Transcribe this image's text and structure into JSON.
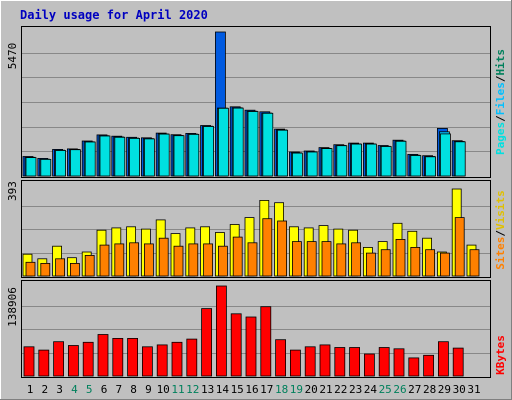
{
  "title": "Daily usage for April 2020",
  "colors": {
    "background": "#c0c0c0",
    "plot_bg": "#c0c0c0",
    "grid": "#888888",
    "hits": "#005ae0",
    "files": "#00c0ff",
    "pages": "#00e0e0",
    "visits": "#ffff00",
    "sites": "#ff8000",
    "kbytes": "#ff0000",
    "title": "#0000c0",
    "weekend_label": "#00805c",
    "weekday_label": "#000000"
  },
  "chart_data": [
    {
      "type": "bar",
      "panel": "hits-files-pages",
      "ylabel_max": "5470",
      "ymax": 5470,
      "legend": [
        "Hits",
        "/",
        "Files",
        "/",
        "Pages"
      ],
      "categories": [
        "1",
        "2",
        "3",
        "4",
        "5",
        "6",
        "7",
        "8",
        "9",
        "10",
        "11",
        "12",
        "13",
        "14",
        "15",
        "16",
        "17",
        "18",
        "19",
        "20",
        "21",
        "22",
        "23",
        "24",
        "25",
        "26",
        "27",
        "28",
        "29",
        "30",
        "31"
      ],
      "series": [
        {
          "name": "Hits",
          "values": [
            740,
            670,
            1010,
            1030,
            1330,
            1560,
            1510,
            1470,
            1450,
            1630,
            1570,
            1620,
            1920,
            5470,
            2630,
            2500,
            2440,
            1780,
            910,
            950,
            1080,
            1190,
            1250,
            1250,
            1160,
            1360,
            820,
            770,
            1810,
            1340,
            0
          ]
        },
        {
          "name": "Files",
          "values": [
            710,
            640,
            980,
            1010,
            1300,
            1530,
            1480,
            1440,
            1420,
            1600,
            1540,
            1590,
            1890,
            2580,
            2590,
            2460,
            2390,
            1750,
            880,
            920,
            1050,
            1160,
            1220,
            1220,
            1130,
            1330,
            790,
            740,
            1680,
            1310,
            0
          ]
        },
        {
          "name": "Pages",
          "values": [
            700,
            630,
            970,
            1000,
            1290,
            1520,
            1470,
            1430,
            1410,
            1590,
            1530,
            1580,
            1880,
            2570,
            2580,
            2450,
            2380,
            1740,
            870,
            910,
            1040,
            1150,
            1210,
            1210,
            1120,
            1320,
            780,
            730,
            1600,
            1300,
            0
          ]
        }
      ]
    },
    {
      "type": "bar",
      "panel": "visits-sites",
      "ylabel_max": "393",
      "ymax": 393,
      "legend": [
        "Visits",
        "/",
        "Sites"
      ],
      "categories": [
        "1",
        "2",
        "3",
        "4",
        "5",
        "6",
        "7",
        "8",
        "9",
        "10",
        "11",
        "12",
        "13",
        "14",
        "15",
        "16",
        "17",
        "18",
        "19",
        "20",
        "21",
        "22",
        "23",
        "24",
        "25",
        "26",
        "27",
        "28",
        "29",
        "30",
        "31"
      ],
      "series": [
        {
          "name": "Visits",
          "values": [
            95,
            75,
            130,
            80,
            105,
            200,
            210,
            215,
            205,
            245,
            185,
            210,
            215,
            190,
            225,
            255,
            330,
            320,
            215,
            210,
            220,
            205,
            200,
            125,
            150,
            230,
            195,
            165,
            105,
            380,
            135
          ]
        },
        {
          "name": "Sites",
          "values": [
            60,
            55,
            75,
            55,
            90,
            135,
            140,
            145,
            140,
            165,
            130,
            140,
            140,
            130,
            170,
            145,
            250,
            240,
            150,
            150,
            150,
            140,
            145,
            100,
            115,
            160,
            125,
            115,
            100,
            255,
            115
          ]
        }
      ]
    },
    {
      "type": "bar",
      "panel": "kbytes",
      "ylabel_max": "138906",
      "ymax": 138906,
      "legend": [
        "KBytes"
      ],
      "categories": [
        "1",
        "2",
        "3",
        "4",
        "5",
        "6",
        "7",
        "8",
        "9",
        "10",
        "11",
        "12",
        "13",
        "14",
        "15",
        "16",
        "17",
        "18",
        "19",
        "20",
        "21",
        "22",
        "23",
        "24",
        "25",
        "26",
        "27",
        "28",
        "29",
        "30",
        "31"
      ],
      "series": [
        {
          "name": "KBytes",
          "values": [
            45000,
            40000,
            53000,
            47000,
            52000,
            64000,
            58000,
            58000,
            45000,
            48000,
            52000,
            57000,
            104000,
            138906,
            96000,
            91000,
            107000,
            56000,
            40000,
            45000,
            48000,
            44000,
            44000,
            34000,
            44000,
            42000,
            28000,
            32000,
            53000,
            43000,
            0
          ]
        }
      ]
    }
  ],
  "x_labels": [
    {
      "day": "1",
      "weekend": false
    },
    {
      "day": "2",
      "weekend": false
    },
    {
      "day": "3",
      "weekend": false
    },
    {
      "day": "4",
      "weekend": true
    },
    {
      "day": "5",
      "weekend": true
    },
    {
      "day": "6",
      "weekend": false
    },
    {
      "day": "7",
      "weekend": false
    },
    {
      "day": "8",
      "weekend": false
    },
    {
      "day": "9",
      "weekend": false
    },
    {
      "day": "10",
      "weekend": false
    },
    {
      "day": "11",
      "weekend": true
    },
    {
      "day": "12",
      "weekend": true
    },
    {
      "day": "13",
      "weekend": false
    },
    {
      "day": "14",
      "weekend": false
    },
    {
      "day": "15",
      "weekend": false
    },
    {
      "day": "16",
      "weekend": false
    },
    {
      "day": "17",
      "weekend": false
    },
    {
      "day": "18",
      "weekend": true
    },
    {
      "day": "19",
      "weekend": true
    },
    {
      "day": "20",
      "weekend": false
    },
    {
      "day": "21",
      "weekend": false
    },
    {
      "day": "22",
      "weekend": false
    },
    {
      "day": "23",
      "weekend": false
    },
    {
      "day": "24",
      "weekend": false
    },
    {
      "day": "25",
      "weekend": true
    },
    {
      "day": "26",
      "weekend": true
    },
    {
      "day": "27",
      "weekend": false
    },
    {
      "day": "28",
      "weekend": false
    },
    {
      "day": "29",
      "weekend": false
    },
    {
      "day": "30",
      "weekend": false
    },
    {
      "day": "31",
      "weekend": false
    }
  ]
}
